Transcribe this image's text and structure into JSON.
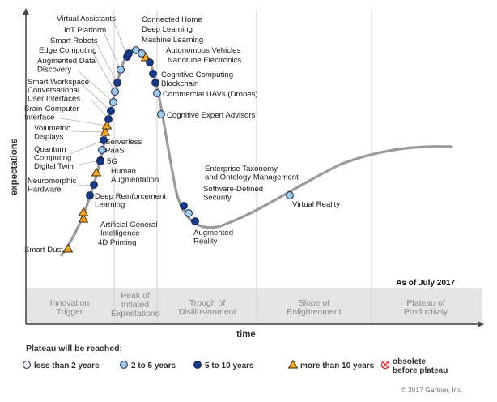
{
  "chart_data": {
    "type": "scatter",
    "title": "",
    "xlabel": "time",
    "ylabel": "expectations",
    "as_of": "As of July 2017",
    "copyright": "© 2017 Gartner, Inc.",
    "phases": [
      "Innovation Trigger",
      "Peak of Inflated Expectations",
      "Trough of Disillusionment",
      "Slope of Enlightenment",
      "Plateau of Productivity"
    ],
    "legend": {
      "title": "Plateau will be reached:",
      "items": [
        {
          "key": "lt2",
          "label": "less than 2 years",
          "marker": "circle",
          "color": "#ffffff"
        },
        {
          "key": "2to5",
          "label": "2 to 5 years",
          "marker": "circle",
          "color": "#9ecae8"
        },
        {
          "key": "5to10",
          "label": "5 to 10 years",
          "marker": "circle",
          "color": "#173a8c"
        },
        {
          "key": "gt10",
          "label": "more than 10 years",
          "marker": "triangle",
          "color": "#f5a11d"
        },
        {
          "key": "obsolete",
          "label": "obsolete before plateau",
          "marker": "cross",
          "color": "#e03030"
        }
      ]
    },
    "points": [
      {
        "name": "Smart Dust",
        "category": "gt10"
      },
      {
        "name": "4D Printing",
        "category": "gt10"
      },
      {
        "name": "Artificial General Intelligence",
        "category": "gt10"
      },
      {
        "name": "Deep Reinforcement Learning",
        "category": "5to10"
      },
      {
        "name": "Neuromorphic Hardware",
        "category": "5to10"
      },
      {
        "name": "Human Augmentation",
        "category": "gt10"
      },
      {
        "name": "Digital Twin",
        "category": "5to10"
      },
      {
        "name": "5G",
        "category": "5to10"
      },
      {
        "name": "Serverless PaaS",
        "category": "2to5"
      },
      {
        "name": "Quantum Computing",
        "category": "5to10"
      },
      {
        "name": "Volumetric Displays",
        "category": "gt10"
      },
      {
        "name": "Brain-Computer Interface",
        "category": "gt10"
      },
      {
        "name": "Conversational User Interfaces",
        "category": "5to10"
      },
      {
        "name": "Smart Workspace",
        "category": "5to10"
      },
      {
        "name": "Augmented Data Discovery",
        "category": "2to5"
      },
      {
        "name": "Edge Computing",
        "category": "2to5"
      },
      {
        "name": "Smart Robots",
        "category": "5to10"
      },
      {
        "name": "IoT Platform",
        "category": "2to5"
      },
      {
        "name": "Virtual Assistants",
        "category": "5to10"
      },
      {
        "name": "Connected Home",
        "category": "5to10"
      },
      {
        "name": "Deep Learning",
        "category": "2to5"
      },
      {
        "name": "Machine Learning",
        "category": "2to5"
      },
      {
        "name": "Autonomous Vehicles",
        "category": "gt10"
      },
      {
        "name": "Nanotube Electronics",
        "category": "5to10"
      },
      {
        "name": "Cognitive Computing",
        "category": "5to10"
      },
      {
        "name": "Blockchain",
        "category": "5to10"
      },
      {
        "name": "Commercial UAVs (Drones)",
        "category": "2to5"
      },
      {
        "name": "Cognitive Expert Advisors",
        "category": "2to5"
      },
      {
        "name": "Enterprise Taxonomy and Ontology Management",
        "category": "5to10"
      },
      {
        "name": "Software-Defined Security",
        "category": "2to5"
      },
      {
        "name": "Augmented Reality",
        "category": "5to10"
      },
      {
        "name": "Virtual Reality",
        "category": "2to5"
      }
    ]
  }
}
